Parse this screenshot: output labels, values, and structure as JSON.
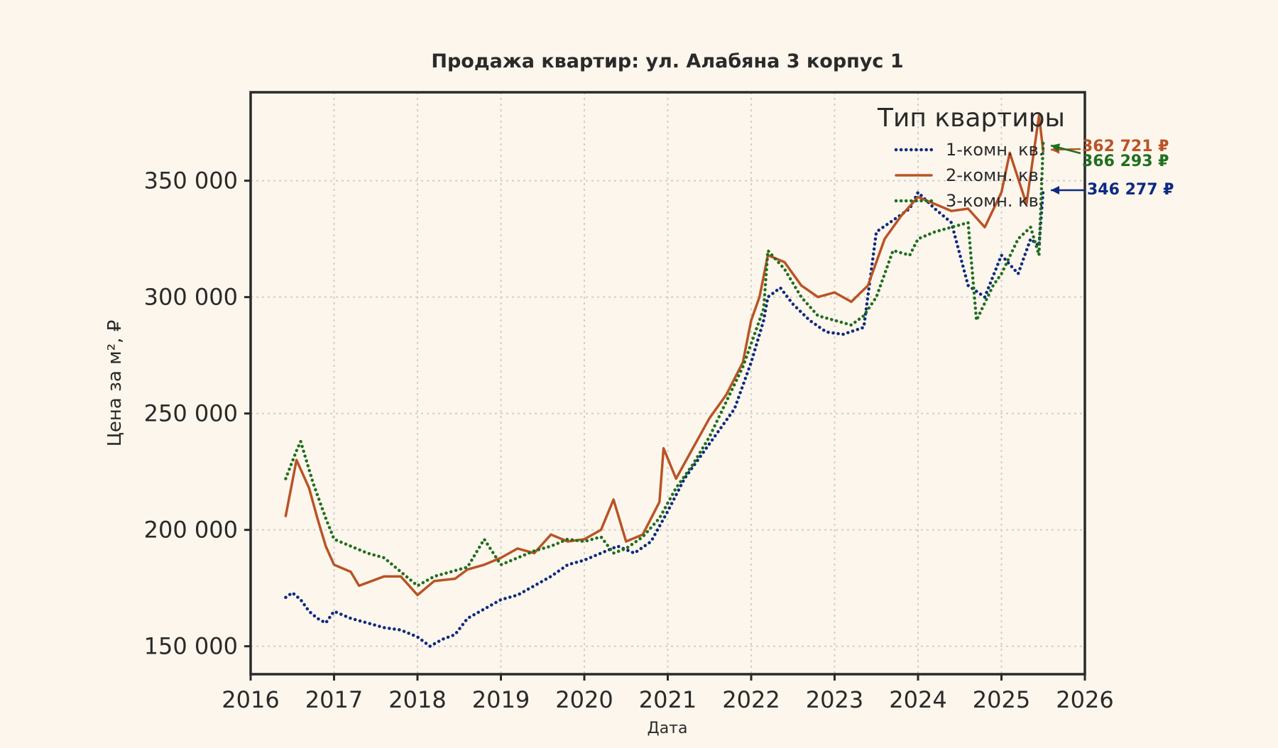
{
  "chart_data": {
    "type": "line",
    "title": "Продажа квартир: ул. Алабяна 3 корпус 1",
    "xlabel": "Дата",
    "ylabel": "Цена за м², ₽",
    "x_unit": "year",
    "xlim": [
      2016.0,
      2026.0
    ],
    "ylim": [
      138000,
      388000
    ],
    "x_ticks": [
      2016,
      2017,
      2018,
      2019,
      2020,
      2021,
      2022,
      2023,
      2024,
      2025,
      2026
    ],
    "x_tick_labels": [
      "2016",
      "2017",
      "2018",
      "2019",
      "2020",
      "2021",
      "2022",
      "2023",
      "2024",
      "2025",
      "2026"
    ],
    "y_ticks": [
      150000,
      200000,
      250000,
      300000,
      350000
    ],
    "y_tick_labels": [
      "150 000",
      "200 000",
      "250 000",
      "300 000",
      "350 000"
    ],
    "grid": true,
    "legend": {
      "title": "Тип квартиры",
      "position": "top-right"
    },
    "series": [
      {
        "name": "1-комн. кв.",
        "color": "#0d2a80",
        "style": "dotted",
        "x": [
          2016.42,
          2016.5,
          2016.6,
          2016.7,
          2016.8,
          2016.9,
          2017.0,
          2017.2,
          2017.4,
          2017.6,
          2017.8,
          2018.0,
          2018.15,
          2018.3,
          2018.45,
          2018.6,
          2018.8,
          2019.0,
          2019.2,
          2019.4,
          2019.6,
          2019.8,
          2020.0,
          2020.2,
          2020.4,
          2020.6,
          2020.8,
          2021.0,
          2021.2,
          2021.4,
          2021.6,
          2021.8,
          2022.0,
          2022.15,
          2022.2,
          2022.35,
          2022.5,
          2022.7,
          2022.9,
          2023.1,
          2023.35,
          2023.5,
          2023.7,
          2023.9,
          2024.0,
          2024.2,
          2024.4,
          2024.6,
          2024.8,
          2025.0,
          2025.2,
          2025.35,
          2025.45,
          2025.5
        ],
        "y": [
          171000,
          173000,
          170000,
          165000,
          162000,
          160000,
          165000,
          162000,
          160000,
          158000,
          157000,
          154000,
          150000,
          153000,
          155000,
          162000,
          166000,
          170000,
          172000,
          176000,
          180000,
          185000,
          187000,
          190000,
          193000,
          190000,
          195000,
          208000,
          222000,
          232000,
          242000,
          252000,
          272000,
          290000,
          300000,
          304000,
          297000,
          290000,
          285000,
          284000,
          287000,
          328000,
          333000,
          338000,
          345000,
          338000,
          332000,
          305000,
          300000,
          318000,
          310000,
          325000,
          322000,
          346277
        ]
      },
      {
        "name": "2-комн. кв.",
        "color": "#b85426",
        "style": "solid",
        "x": [
          2016.42,
          2016.55,
          2016.7,
          2016.8,
          2016.9,
          2017.0,
          2017.2,
          2017.3,
          2017.6,
          2017.8,
          2018.0,
          2018.2,
          2018.45,
          2018.6,
          2018.8,
          2019.0,
          2019.2,
          2019.4,
          2019.6,
          2019.8,
          2020.0,
          2020.2,
          2020.35,
          2020.5,
          2020.7,
          2020.9,
          2020.95,
          2021.1,
          2021.3,
          2021.5,
          2021.7,
          2021.9,
          2022.0,
          2022.1,
          2022.2,
          2022.4,
          2022.6,
          2022.8,
          2023.0,
          2023.2,
          2023.4,
          2023.6,
          2023.8,
          2024.0,
          2024.2,
          2024.4,
          2024.6,
          2024.8,
          2025.0,
          2025.1,
          2025.3,
          2025.45,
          2025.5
        ],
        "y": [
          206000,
          230000,
          218000,
          205000,
          193000,
          185000,
          182000,
          176000,
          180000,
          180000,
          172000,
          178000,
          179000,
          183000,
          185000,
          188000,
          192000,
          190000,
          198000,
          195000,
          196000,
          200000,
          213000,
          195000,
          198000,
          212000,
          235000,
          222000,
          235000,
          248000,
          258000,
          272000,
          290000,
          300000,
          318000,
          315000,
          305000,
          300000,
          302000,
          298000,
          305000,
          325000,
          335000,
          343000,
          340000,
          337000,
          338000,
          330000,
          345000,
          362000,
          340000,
          378000,
          362721
        ]
      },
      {
        "name": "3-комн. кв.",
        "color": "#1f6f1f",
        "style": "dotted",
        "x": [
          2016.42,
          2016.55,
          2016.6,
          2016.75,
          2016.9,
          2017.0,
          2017.2,
          2017.4,
          2017.6,
          2017.8,
          2018.0,
          2018.2,
          2018.4,
          2018.6,
          2018.8,
          2019.0,
          2019.2,
          2019.4,
          2019.6,
          2019.8,
          2020.0,
          2020.2,
          2020.35,
          2020.5,
          2020.7,
          2020.9,
          2021.1,
          2021.3,
          2021.5,
          2021.7,
          2021.9,
          2022.0,
          2022.15,
          2022.2,
          2022.4,
          2022.6,
          2022.8,
          2023.0,
          2023.2,
          2023.35,
          2023.5,
          2023.7,
          2023.9,
          2024.0,
          2024.2,
          2024.4,
          2024.6,
          2024.7,
          2024.9,
          2025.0,
          2025.2,
          2025.35,
          2025.45,
          2025.5
        ],
        "y": [
          222000,
          234000,
          238000,
          220000,
          205000,
          196000,
          193000,
          190000,
          188000,
          182000,
          176000,
          180000,
          182000,
          184000,
          196000,
          185000,
          188000,
          191000,
          193000,
          196000,
          195000,
          197000,
          190000,
          192000,
          197000,
          205000,
          218000,
          228000,
          240000,
          255000,
          270000,
          280000,
          295000,
          320000,
          312000,
          300000,
          292000,
          290000,
          288000,
          292000,
          300000,
          320000,
          318000,
          325000,
          328000,
          330000,
          332000,
          290000,
          305000,
          310000,
          325000,
          330000,
          318000,
          366293
        ]
      }
    ],
    "end_labels": [
      {
        "series": "2-комн. кв.",
        "text": "362 721 ₽",
        "color": "#b85426"
      },
      {
        "series": "3-комн. кв.",
        "text": "366 293 ₽",
        "color": "#1f6f1f"
      },
      {
        "series": "1-комн. кв.",
        "text": "346 277 ₽",
        "color": "#0d2a80"
      }
    ]
  }
}
